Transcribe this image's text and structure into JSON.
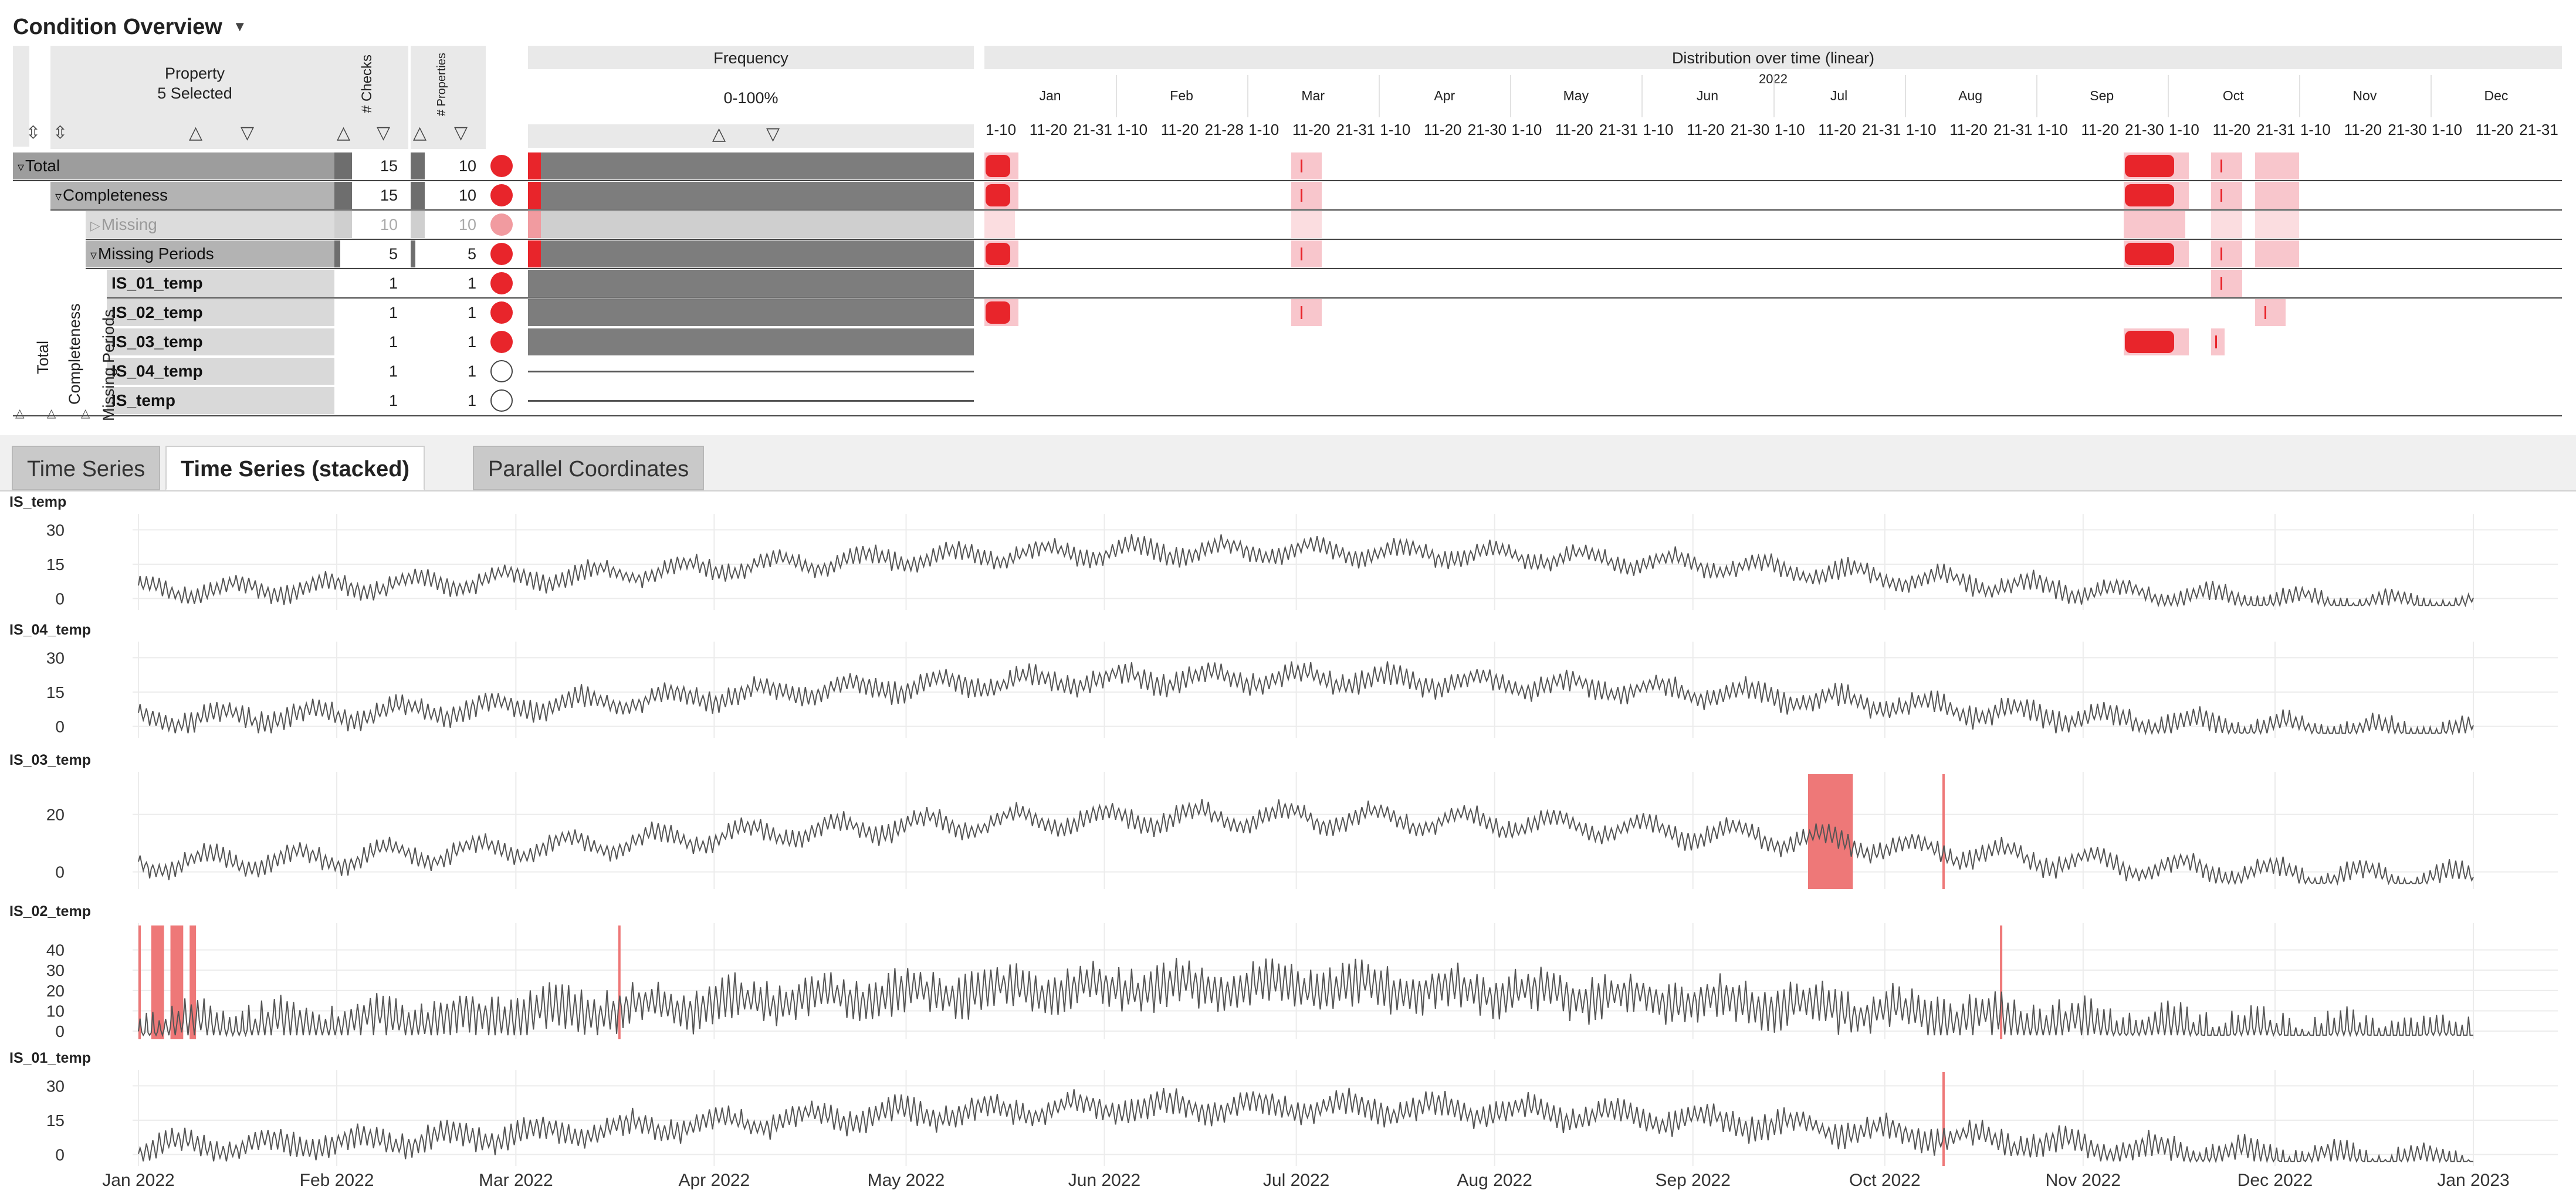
{
  "header": {
    "title": "Condition Overview",
    "menu_icon": "caret-down-icon"
  },
  "overview": {
    "property_header": "Property",
    "property_selected": "5 Selected",
    "checks_header": "# Checks",
    "properties_header": "# Properties",
    "frequency_header": "Frequency",
    "frequency_range": "0-100%",
    "distribution_header": "Distribution over time (linear)",
    "year": "2022",
    "months": [
      "Jan",
      "Feb",
      "Mar",
      "Apr",
      "May",
      "Jun",
      "Jul",
      "Aug",
      "Sep",
      "Oct",
      "Nov",
      "Dec"
    ],
    "periods": [
      "1-10",
      "11-20",
      "21-31",
      "1-10",
      "11-20",
      "21-28",
      "1-10",
      "11-20",
      "21-31",
      "1-10",
      "11-20",
      "21-30",
      "1-10",
      "11-20",
      "21-31",
      "1-10",
      "11-20",
      "21-30",
      "1-10",
      "11-20",
      "21-31",
      "1-10",
      "11-20",
      "21-31",
      "1-10",
      "11-20",
      "21-30",
      "1-10",
      "11-20",
      "21-31",
      "1-10",
      "11-20",
      "21-30",
      "1-10",
      "11-20",
      "21-31"
    ],
    "group_labels": [
      "Total",
      "Completeness",
      "Missing Periods"
    ],
    "rows": [
      {
        "label": "Total",
        "checks": "15",
        "properties": "10",
        "frequency": 1.0,
        "status": "filled",
        "level": 0,
        "style": "group"
      },
      {
        "label": "Completeness",
        "checks": "15",
        "properties": "10",
        "frequency": 1.0,
        "status": "filled",
        "level": 1,
        "style": "group"
      },
      {
        "label": "Missing",
        "checks": "10",
        "properties": "10",
        "frequency": 1.0,
        "status": "faded",
        "level": 2,
        "style": "faded"
      },
      {
        "label": "Missing Periods",
        "checks": "5",
        "properties": "5",
        "frequency": 1.0,
        "status": "filled",
        "level": 2,
        "style": "group"
      },
      {
        "label": "IS_01_temp",
        "checks": "1",
        "properties": "1",
        "frequency": 1.0,
        "status": "filled",
        "level": 3,
        "style": "leaf"
      },
      {
        "label": "IS_02_temp",
        "checks": "1",
        "properties": "1",
        "frequency": 1.0,
        "status": "filled",
        "level": 3,
        "style": "leaf"
      },
      {
        "label": "IS_03_temp",
        "checks": "1",
        "properties": "1",
        "frequency": 1.0,
        "status": "filled",
        "level": 3,
        "style": "leaf"
      },
      {
        "label": "IS_04_temp",
        "checks": "1",
        "properties": "1",
        "frequency": 0.0,
        "status": "empty",
        "level": 3,
        "style": "leaf"
      },
      {
        "label": "IS_temp",
        "checks": "1",
        "properties": "1",
        "frequency": 0.0,
        "status": "empty",
        "level": 3,
        "style": "leaf"
      }
    ],
    "colors": {
      "issue": "#e8252b",
      "issue_light": "#f8c6cc",
      "bar": "#7d7d7d"
    }
  },
  "tabs": [
    {
      "label": "Time Series",
      "active": false
    },
    {
      "label": "Time Series (stacked)",
      "active": true
    },
    {
      "label": "Parallel Coordinates",
      "active": false
    }
  ],
  "chart_data": [
    {
      "type": "line",
      "title": "IS_temp",
      "x_range": [
        "2022-01-01",
        "2023-01-01"
      ],
      "yticks": [
        0,
        15,
        30
      ],
      "ylim": [
        -5,
        36
      ],
      "base": 12,
      "amp": 9,
      "noise": 3,
      "seed": 1,
      "gaps": []
    },
    {
      "type": "line",
      "title": "IS_04_temp",
      "x_range": [
        "2022-01-01",
        "2023-01-01"
      ],
      "yticks": [
        0,
        15,
        30
      ],
      "ylim": [
        -5,
        36
      ],
      "base": 12,
      "amp": 9,
      "noise": 3.5,
      "seed": 2,
      "gaps": []
    },
    {
      "type": "line",
      "title": "IS_03_temp",
      "x_range": [
        "2022-01-01",
        "2023-01-01"
      ],
      "yticks": [
        0,
        20
      ],
      "ylim": [
        -6,
        34
      ],
      "base": 11,
      "amp": 8,
      "noise": 2.5,
      "seed": 3,
      "gaps": [
        [
          "2022-09-19",
          "2022-09-26"
        ],
        [
          "2022-10-10",
          "2022-10-10"
        ]
      ]
    },
    {
      "type": "line",
      "title": "IS_02_temp",
      "x_range": [
        "2022-01-01",
        "2023-01-01"
      ],
      "yticks": [
        0,
        10,
        20,
        30,
        40
      ],
      "ylim": [
        -4,
        52
      ],
      "base": 12,
      "amp": 10,
      "noise": 8,
      "seed": 4,
      "gaps": [
        [
          "2022-01-01",
          "2022-01-01"
        ],
        [
          "2022-01-03",
          "2022-01-05"
        ],
        [
          "2022-01-06",
          "2022-01-08"
        ],
        [
          "2022-01-09",
          "2022-01-10"
        ],
        [
          "2022-03-17",
          "2022-03-17"
        ],
        [
          "2022-10-19",
          "2022-10-19"
        ]
      ]
    },
    {
      "type": "line",
      "title": "IS_01_temp",
      "x_range": [
        "2022-01-01",
        "2023-01-01"
      ],
      "yticks": [
        0,
        15,
        30
      ],
      "ylim": [
        -5,
        36
      ],
      "base": 12,
      "amp": 9,
      "noise": 4,
      "seed": 5,
      "gaps": [
        [
          "2022-10-10",
          "2022-10-10"
        ]
      ]
    }
  ],
  "x_axis_labels": [
    "Jan 2022",
    "Feb 2022",
    "Mar 2022",
    "Apr 2022",
    "May 2022",
    "Jun 2022",
    "Jul 2022",
    "Aug 2022",
    "Sep 2022",
    "Oct 2022",
    "Nov 2022",
    "Dec 2022",
    "Jan 2023"
  ]
}
